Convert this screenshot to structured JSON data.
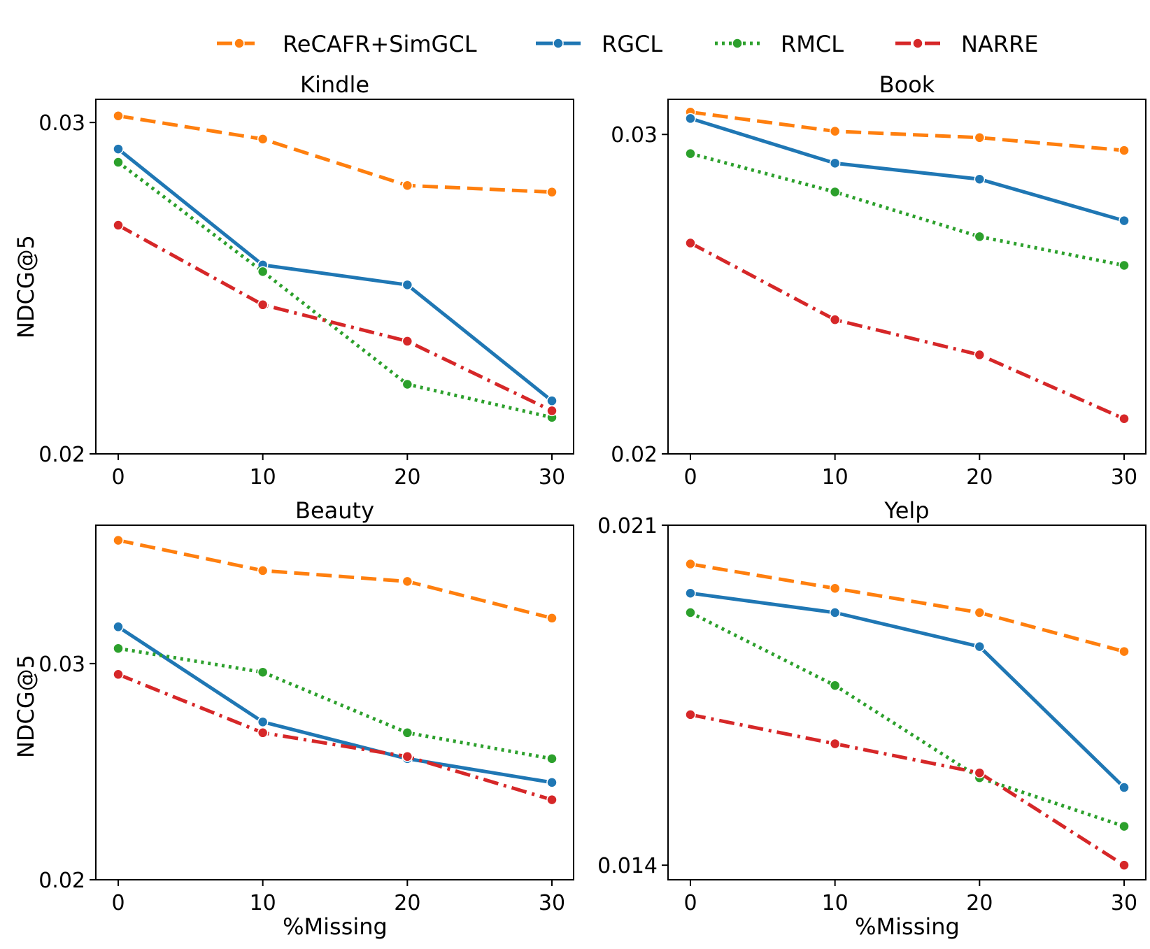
{
  "legend": [
    {
      "name": "ReCAFR+SimGCL",
      "color": "#ff7f0e",
      "dash": "dashed"
    },
    {
      "name": "RGCL",
      "color": "#1f77b4",
      "dash": "solid"
    },
    {
      "name": "RMCL",
      "color": "#2ca02c",
      "dash": "dotted"
    },
    {
      "name": "NARRE",
      "color": "#d62728",
      "dash": "dashdot"
    }
  ],
  "chart_data": [
    {
      "type": "line",
      "title": "Kindle",
      "xlabel": "",
      "ylabel": "NDCG@5",
      "x": [
        0,
        10,
        20,
        30
      ],
      "x_ticks": [
        "0",
        "10",
        "20",
        "30"
      ],
      "y_ticks": [
        {
          "value": 0.02,
          "label": "0.02"
        },
        {
          "value": 0.03,
          "label": "0.03"
        }
      ],
      "ylim": [
        0.02,
        0.0307
      ],
      "series": [
        {
          "name": "ReCAFR+SimGCL",
          "values": [
            0.0302,
            0.0295,
            0.0281,
            0.0279
          ]
        },
        {
          "name": "RGCL",
          "values": [
            0.0292,
            0.0257,
            0.0251,
            0.0216
          ]
        },
        {
          "name": "RMCL",
          "values": [
            0.0288,
            0.0255,
            0.0221,
            0.0211
          ]
        },
        {
          "name": "NARRE",
          "values": [
            0.0269,
            0.0245,
            0.0234,
            0.0213
          ]
        }
      ]
    },
    {
      "type": "line",
      "title": "Book",
      "xlabel": "",
      "ylabel": "",
      "x": [
        0,
        10,
        20,
        30
      ],
      "x_ticks": [
        "0",
        "10",
        "20",
        "30"
      ],
      "y_ticks": [
        {
          "value": 0.02,
          "label": "0.02"
        },
        {
          "value": 0.03,
          "label": "0.03"
        }
      ],
      "ylim": [
        0.02,
        0.0311
      ],
      "series": [
        {
          "name": "ReCAFR+SimGCL",
          "values": [
            0.0307,
            0.0301,
            0.0299,
            0.0295
          ]
        },
        {
          "name": "RGCL",
          "values": [
            0.0305,
            0.0291,
            0.0286,
            0.0273
          ]
        },
        {
          "name": "RMCL",
          "values": [
            0.0294,
            0.0282,
            0.0268,
            0.0259
          ]
        },
        {
          "name": "NARRE",
          "values": [
            0.0266,
            0.0242,
            0.0231,
            0.0211
          ]
        }
      ]
    },
    {
      "type": "line",
      "title": "Beauty",
      "xlabel": "%Missing",
      "ylabel": "NDCG@5",
      "x": [
        0,
        10,
        20,
        30
      ],
      "x_ticks": [
        "0",
        "10",
        "20",
        "30"
      ],
      "y_ticks": [
        {
          "value": 0.02,
          "label": "0.02"
        },
        {
          "value": 0.03,
          "label": "0.03"
        }
      ],
      "ylim": [
        0.02,
        0.0364
      ],
      "series": [
        {
          "name": "ReCAFR+SimGCL",
          "values": [
            0.0357,
            0.0343,
            0.0338,
            0.0321
          ]
        },
        {
          "name": "RGCL",
          "values": [
            0.0317,
            0.0273,
            0.0256,
            0.0245
          ]
        },
        {
          "name": "RMCL",
          "values": [
            0.0307,
            0.0296,
            0.0268,
            0.0256
          ]
        },
        {
          "name": "NARRE",
          "values": [
            0.0295,
            0.0268,
            0.0257,
            0.0237
          ]
        }
      ]
    },
    {
      "type": "line",
      "title": "Yelp",
      "xlabel": "%Missing",
      "ylabel": "",
      "x": [
        0,
        10,
        20,
        30
      ],
      "x_ticks": [
        "0",
        "10",
        "20",
        "30"
      ],
      "y_ticks": [
        {
          "value": 0.014,
          "label": "0.014"
        },
        {
          "value": 0.021,
          "label": "0.021"
        }
      ],
      "ylim": [
        0.0137,
        0.021
      ],
      "series": [
        {
          "name": "ReCAFR+SimGCL",
          "values": [
            0.0202,
            0.0197,
            0.0192,
            0.0184
          ]
        },
        {
          "name": "RGCL",
          "values": [
            0.0196,
            0.0192,
            0.0185,
            0.0156
          ]
        },
        {
          "name": "RMCL",
          "values": [
            0.0192,
            0.0177,
            0.0158,
            0.0148
          ]
        },
        {
          "name": "NARRE",
          "values": [
            0.0171,
            0.0165,
            0.0159,
            0.014
          ]
        }
      ]
    }
  ]
}
